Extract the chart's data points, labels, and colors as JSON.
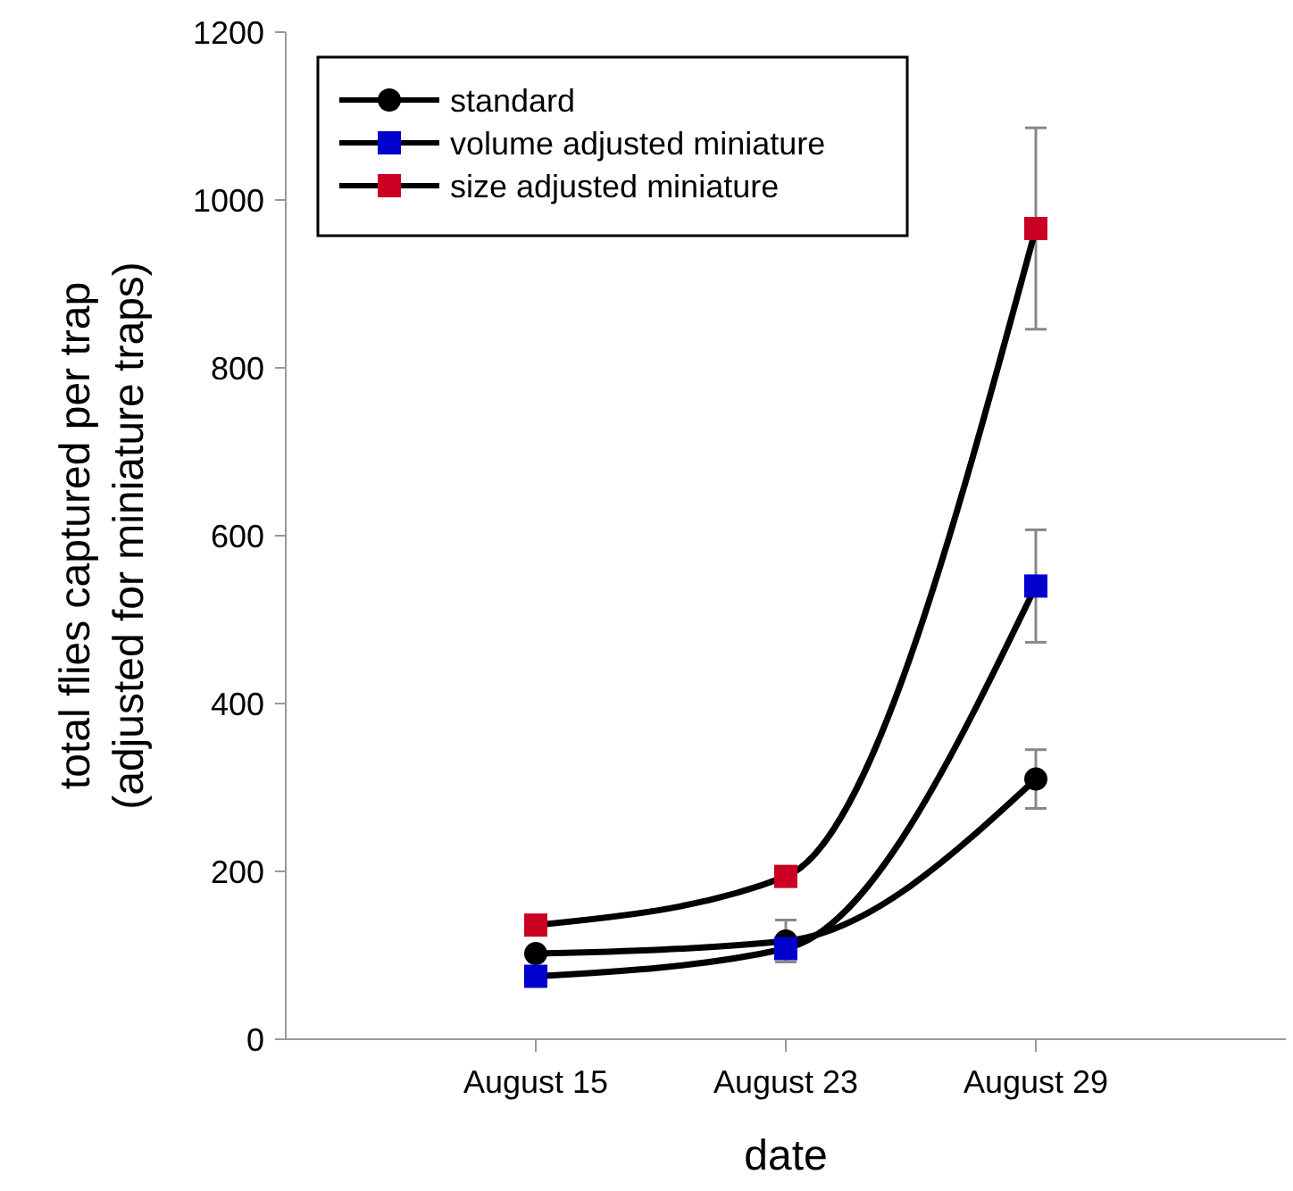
{
  "chart_data": {
    "type": "line",
    "xlabel": "date",
    "ylabel": "total flies captured per trap\n(adjusted for miniature traps)",
    "categories": [
      "August 15",
      "August 23",
      "August 29"
    ],
    "ylim": [
      0,
      1200
    ],
    "yticks": [
      0,
      200,
      400,
      600,
      800,
      1000,
      1200
    ],
    "grid": false,
    "legend": "top left",
    "line_style": "solid",
    "series": [
      {
        "name": "standard",
        "color": "#000000",
        "marker": "circle",
        "values": [
          102,
          117,
          310
        ],
        "errors": [
          null,
          25,
          35
        ]
      },
      {
        "name": "volume adjusted miniature",
        "color": "#0000cc",
        "marker": "square",
        "values": [
          75,
          108,
          540
        ],
        "errors": [
          null,
          null,
          67
        ]
      },
      {
        "name": "size adjusted miniature",
        "color": "#cc0022",
        "marker": "square",
        "values": [
          136,
          194,
          966
        ],
        "errors": [
          null,
          null,
          120
        ]
      }
    ]
  }
}
